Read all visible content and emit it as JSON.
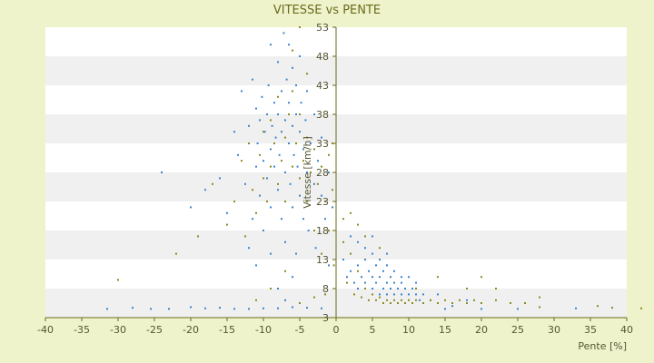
{
  "chart_data": {
    "type": "scatter",
    "title": "VITESSE vs PENTE",
    "xlabel": "Pente [%]",
    "ylabel": "Vitesse [km/h]",
    "xlim": [
      -40,
      40
    ],
    "ylim": [
      3,
      53
    ],
    "xticks": [
      "-40",
      "-35",
      "-30",
      "-25",
      "-20",
      "-15",
      "-10",
      "-5",
      "0",
      "5",
      "10",
      "15",
      "20",
      "25",
      "30",
      "35",
      "40"
    ],
    "yticks": [
      "3",
      "8",
      "13",
      "18",
      "23",
      "28",
      "33",
      "38",
      "43",
      "48",
      "53"
    ],
    "grid": "horizontal alternating bands",
    "legend": "none",
    "colors": {
      "background": "#eef3cc",
      "plot_bg": "#ffffff",
      "band": "#f0f0f0",
      "blue": "#3a86d0",
      "olive": "#8d8a20",
      "axis": "#6a6a1a"
    },
    "series": [
      {
        "color": "#3a86d0",
        "points": [
          [
            -31.5,
            4.5
          ],
          [
            -28,
            4.7
          ],
          [
            -25.5,
            4.5
          ],
          [
            -23,
            4.5
          ],
          [
            -20,
            4.8
          ],
          [
            -18,
            4.6
          ],
          [
            -16,
            4.7
          ],
          [
            -14,
            4.5
          ],
          [
            -12,
            4.5
          ],
          [
            -10,
            4.6
          ],
          [
            -8,
            4.6
          ],
          [
            -6,
            4.8
          ],
          [
            -4,
            4.7
          ],
          [
            -2,
            4.6
          ],
          [
            -24,
            28
          ],
          [
            -20,
            22
          ],
          [
            -18,
            25
          ],
          [
            -16,
            27
          ],
          [
            -15,
            21
          ],
          [
            -14,
            35
          ],
          [
            -13.5,
            31
          ],
          [
            -13,
            42
          ],
          [
            -12.5,
            26
          ],
          [
            -12,
            36
          ],
          [
            -12,
            15
          ],
          [
            -11.5,
            44
          ],
          [
            -11.5,
            20
          ],
          [
            -11,
            39
          ],
          [
            -11,
            29
          ],
          [
            -11,
            12
          ],
          [
            -10.8,
            33
          ],
          [
            -10.5,
            37
          ],
          [
            -10.5,
            24
          ],
          [
            -10.2,
            41
          ],
          [
            -10,
            30
          ],
          [
            -10,
            18
          ],
          [
            -9.8,
            35
          ],
          [
            -9.5,
            38
          ],
          [
            -9.5,
            27
          ],
          [
            -9.3,
            43
          ],
          [
            -9,
            32
          ],
          [
            -9,
            22
          ],
          [
            -9,
            50
          ],
          [
            -8.8,
            36
          ],
          [
            -8.5,
            40
          ],
          [
            -8.5,
            29
          ],
          [
            -8.3,
            34
          ],
          [
            -8,
            38
          ],
          [
            -8,
            25
          ],
          [
            -8,
            47
          ],
          [
            -7.8,
            31
          ],
          [
            -7.5,
            42
          ],
          [
            -7.5,
            35
          ],
          [
            -7.5,
            20
          ],
          [
            -7.2,
            52
          ],
          [
            -7,
            37
          ],
          [
            -7,
            28
          ],
          [
            -7,
            16
          ],
          [
            -6.8,
            44
          ],
          [
            -6.5,
            33
          ],
          [
            -6.5,
            40
          ],
          [
            -6.5,
            50
          ],
          [
            -6.3,
            26
          ],
          [
            -6,
            36
          ],
          [
            -6,
            46
          ],
          [
            -6,
            22
          ],
          [
            -5.8,
            31
          ],
          [
            -5.5,
            38
          ],
          [
            -5.5,
            43
          ],
          [
            -5.5,
            14
          ],
          [
            -5.3,
            29
          ],
          [
            -5,
            35
          ],
          [
            -5,
            48
          ],
          [
            -5,
            24
          ],
          [
            -4.8,
            40
          ],
          [
            -4.5,
            32
          ],
          [
            -4.5,
            20
          ],
          [
            -4.2,
            37
          ],
          [
            -4,
            28
          ],
          [
            -4,
            42
          ],
          [
            -3.8,
            18
          ],
          [
            -3.5,
            33
          ],
          [
            -3,
            26
          ],
          [
            -3,
            38
          ],
          [
            -2.8,
            15
          ],
          [
            -2.5,
            30
          ],
          [
            -2,
            24
          ],
          [
            -2,
            34
          ],
          [
            -1.5,
            20
          ],
          [
            -1,
            28
          ],
          [
            -1,
            12
          ],
          [
            -0.5,
            22
          ],
          [
            -6,
            10
          ],
          [
            -8,
            8
          ],
          [
            -9,
            14
          ],
          [
            -7,
            6
          ],
          [
            1,
            13
          ],
          [
            1.5,
            10
          ],
          [
            2,
            11
          ],
          [
            2.5,
            9
          ],
          [
            3,
            12
          ],
          [
            3,
            8
          ],
          [
            3.5,
            10
          ],
          [
            4,
            13
          ],
          [
            4,
            9
          ],
          [
            4.5,
            11
          ],
          [
            5,
            10
          ],
          [
            5,
            8
          ],
          [
            5.5,
            12
          ],
          [
            5.5,
            9
          ],
          [
            6,
            10
          ],
          [
            6,
            7
          ],
          [
            6.5,
            11
          ],
          [
            6.5,
            8
          ],
          [
            7,
            9
          ],
          [
            7,
            7
          ],
          [
            7.5,
            10
          ],
          [
            7.5,
            8
          ],
          [
            8,
            9
          ],
          [
            8,
            7
          ],
          [
            8.5,
            8
          ],
          [
            9,
            9
          ],
          [
            9,
            7
          ],
          [
            9.5,
            8
          ],
          [
            10,
            7
          ],
          [
            10.5,
            8
          ],
          [
            11,
            7
          ],
          [
            11.5,
            6
          ],
          [
            12,
            7
          ],
          [
            13,
            6
          ],
          [
            14,
            7
          ],
          [
            16,
            5
          ],
          [
            18,
            6
          ],
          [
            4,
            15
          ],
          [
            5,
            14
          ],
          [
            6,
            13
          ],
          [
            7,
            12
          ],
          [
            8,
            11
          ],
          [
            9,
            10
          ],
          [
            10,
            10
          ],
          [
            11,
            9
          ],
          [
            3,
            16
          ],
          [
            2,
            17
          ],
          [
            5,
            17
          ],
          [
            7,
            14
          ],
          [
            15,
            4.5
          ],
          [
            20,
            4.5
          ],
          [
            25,
            4.5
          ],
          [
            33,
            4.6
          ]
        ]
      },
      {
        "color": "#8d8a20",
        "points": [
          [
            -30,
            9.5
          ],
          [
            -22,
            14
          ],
          [
            -19,
            17
          ],
          [
            -17,
            26
          ],
          [
            -15,
            19
          ],
          [
            -14,
            23
          ],
          [
            -13,
            30
          ],
          [
            -12.5,
            17
          ],
          [
            -12,
            33
          ],
          [
            -11.5,
            25
          ],
          [
            -11,
            21
          ],
          [
            -10.5,
            31
          ],
          [
            -10,
            27
          ],
          [
            -10,
            35
          ],
          [
            -9.5,
            23
          ],
          [
            -9,
            29
          ],
          [
            -9,
            37
          ],
          [
            -8.5,
            33
          ],
          [
            -8,
            26
          ],
          [
            -8,
            41
          ],
          [
            -7.5,
            30
          ],
          [
            -7,
            34
          ],
          [
            -7,
            23
          ],
          [
            -6.5,
            38
          ],
          [
            -6,
            29
          ],
          [
            -6,
            42
          ],
          [
            -5.5,
            33
          ],
          [
            -5,
            27
          ],
          [
            -5,
            38
          ],
          [
            -4.5,
            30
          ],
          [
            -4,
            34
          ],
          [
            -4,
            23
          ],
          [
            -3.5,
            28
          ],
          [
            -3,
            32
          ],
          [
            -3,
            18
          ],
          [
            -2.5,
            26
          ],
          [
            -2,
            29
          ],
          [
            -2,
            14
          ],
          [
            -1.5,
            23
          ],
          [
            -1,
            31
          ],
          [
            -1,
            18
          ],
          [
            -0.5,
            25
          ],
          [
            -0.5,
            33
          ],
          [
            -0.3,
            12
          ],
          [
            -5,
            53
          ],
          [
            -4,
            45
          ],
          [
            -6,
            49
          ],
          [
            -11,
            6
          ],
          [
            -9,
            8
          ],
          [
            -7,
            11
          ],
          [
            -5,
            5.5
          ],
          [
            -3,
            6.5
          ],
          [
            -1.5,
            7
          ],
          [
            1,
            20
          ],
          [
            1,
            16
          ],
          [
            1.5,
            9
          ],
          [
            2,
            14
          ],
          [
            2.5,
            7
          ],
          [
            3,
            11
          ],
          [
            3.5,
            6.5
          ],
          [
            4,
            8
          ],
          [
            4.5,
            6
          ],
          [
            5,
            7
          ],
          [
            5.5,
            6
          ],
          [
            6,
            6.5
          ],
          [
            6.5,
            5.5
          ],
          [
            7,
            6
          ],
          [
            7.5,
            5.5
          ],
          [
            8,
            6
          ],
          [
            8.5,
            5.5
          ],
          [
            9,
            6
          ],
          [
            9.5,
            5.5
          ],
          [
            10,
            6
          ],
          [
            10.5,
            5.5
          ],
          [
            11,
            6
          ],
          [
            12,
            5.5
          ],
          [
            13,
            6
          ],
          [
            14,
            5.5
          ],
          [
            15,
            6
          ],
          [
            16,
            5.5
          ],
          [
            17,
            6
          ],
          [
            18,
            5.5
          ],
          [
            19,
            6
          ],
          [
            20,
            5.5
          ],
          [
            22,
            6
          ],
          [
            24,
            5.5
          ],
          [
            26,
            5.5
          ],
          [
            28,
            6.5
          ],
          [
            3,
            19
          ],
          [
            4,
            17
          ],
          [
            2,
            21
          ],
          [
            6,
            15
          ],
          [
            11,
            8
          ],
          [
            14,
            10
          ],
          [
            18,
            8
          ],
          [
            20,
            10
          ],
          [
            22,
            8
          ],
          [
            36,
            5
          ],
          [
            38,
            4.7
          ],
          [
            42,
            4.6
          ],
          [
            28,
            4.8
          ]
        ]
      }
    ]
  }
}
